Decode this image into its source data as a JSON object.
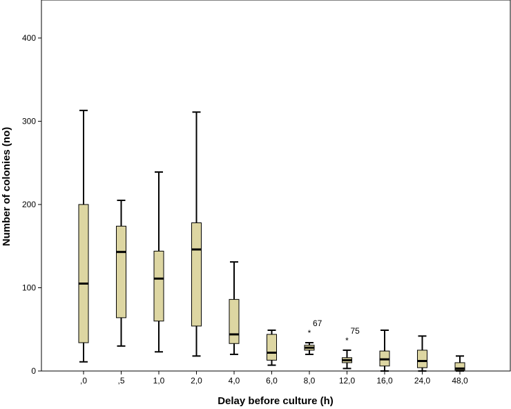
{
  "chart_data": {
    "type": "boxplot",
    "xlabel": "Delay before culture (h)",
    "ylabel": "Number of colonies (no)",
    "ylim": [
      0,
      450
    ],
    "yticks": [
      0,
      100,
      200,
      300,
      400
    ],
    "ytick_labels": [
      "0",
      "100",
      "200",
      "300",
      "400"
    ],
    "grid": false,
    "box_fill": "#ddd6a2",
    "categories": [
      ",0",
      ",5",
      "1,0",
      "2,0",
      "4,0",
      "6,0",
      "8,0",
      "12,0",
      "16,0",
      "24,0",
      "48,0"
    ],
    "boxes": [
      {
        "min": 11,
        "q1": 34,
        "median": 105,
        "q3": 200,
        "max": 313
      },
      {
        "min": 30,
        "q1": 64,
        "median": 143,
        "q3": 174,
        "max": 205
      },
      {
        "min": 23,
        "q1": 60,
        "median": 111,
        "q3": 144,
        "max": 239
      },
      {
        "min": 18,
        "q1": 54,
        "median": 146,
        "q3": 178,
        "max": 311
      },
      {
        "min": 20,
        "q1": 33,
        "median": 44,
        "q3": 86,
        "max": 131
      },
      {
        "min": 7,
        "q1": 13,
        "median": 22,
        "q3": 44,
        "max": 49
      },
      {
        "min": 20,
        "q1": 25,
        "median": 28,
        "q3": 31,
        "max": 34
      },
      {
        "min": 3,
        "q1": 10,
        "median": 13,
        "q3": 16,
        "max": 25
      },
      {
        "min": 0,
        "q1": 6,
        "median": 14,
        "q3": 24,
        "max": 49
      },
      {
        "min": 0,
        "q1": 4,
        "median": 12,
        "q3": 25,
        "max": 42
      },
      {
        "min": 0,
        "q1": 1,
        "median": 3,
        "q3": 10,
        "max": 18
      }
    ],
    "outliers": [
      {
        "category": "8,0",
        "value": 49,
        "label": "67"
      },
      {
        "category": "12,0",
        "value": 40,
        "label": "75"
      }
    ]
  }
}
